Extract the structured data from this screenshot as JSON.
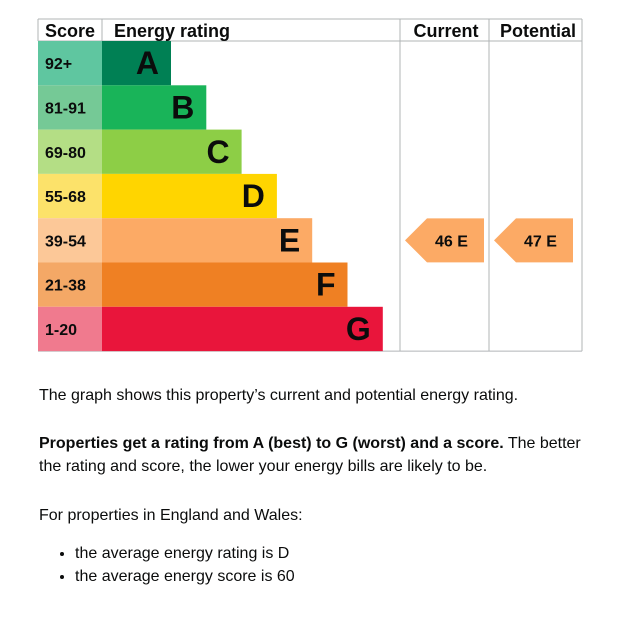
{
  "chart_data": {
    "type": "bar",
    "headers": {
      "score": "Score",
      "rating": "Energy rating",
      "current": "Current",
      "potential": "Potential"
    },
    "bands": [
      {
        "score_range": "92+",
        "letter": "A",
        "color": "#008054",
        "score_color": "#5fc6a0"
      },
      {
        "score_range": "81-91",
        "letter": "B",
        "color": "#19b459",
        "score_color": "#75c996"
      },
      {
        "score_range": "69-80",
        "letter": "C",
        "color": "#8dce46",
        "score_color": "#b4de85"
      },
      {
        "score_range": "55-68",
        "letter": "D",
        "color": "#ffd500",
        "score_color": "#fce26a"
      },
      {
        "score_range": "39-54",
        "letter": "E",
        "color": "#fcaa65",
        "score_color": "#fcc898"
      },
      {
        "score_range": "21-38",
        "letter": "F",
        "color": "#ef8023",
        "score_color": "#f4a866"
      },
      {
        "score_range": "1-20",
        "letter": "G",
        "color": "#e9153b",
        "score_color": "#f07a8e"
      }
    ],
    "current": {
      "score": 46,
      "rating": "E",
      "label": "46 E",
      "color": "#fcaa65"
    },
    "potential": {
      "score": 47,
      "rating": "E",
      "label": "47 E",
      "color": "#fcaa65"
    }
  },
  "text": {
    "intro": "The graph shows this property’s current and potential energy rating.",
    "rating_bold": "Properties get a rating from A (best) to G (worst) and a score.",
    "rating_rest": " The better the rating and score, the lower your energy bills are likely to be.",
    "region": "For properties in England and Wales:",
    "avg_rating": "the average energy rating is D",
    "avg_score": "the average energy score is 60"
  }
}
